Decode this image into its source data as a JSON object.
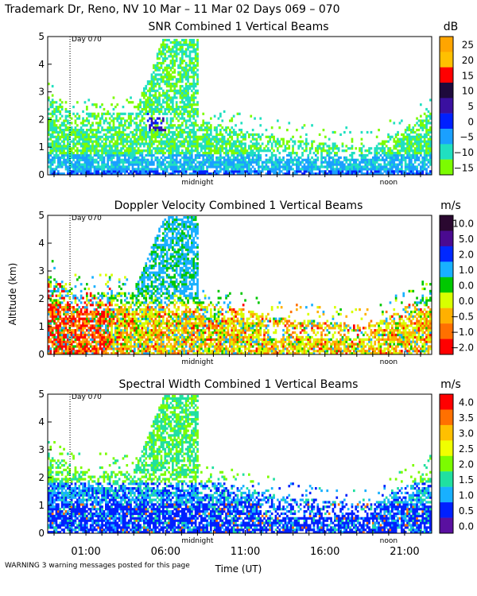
{
  "header": "Trademark Dr, Reno, NV  10 Mar – 11 Mar 02 Days 069 – 070",
  "warning": "WARNING  3 warning messages posted for this page",
  "time_axis": {
    "label": "Time (UT)",
    "hour_labels": [
      "01:00",
      "06:00",
      "11:00",
      "16:00",
      "21:00"
    ],
    "hour_values": [
      1,
      6,
      11,
      16,
      21
    ],
    "markers": [
      {
        "label": "midnight",
        "value": 8
      },
      {
        "label": "noon",
        "value": 20
      }
    ],
    "day_marker": {
      "label": "Day 070",
      "value": 0
    },
    "xlim": [
      -1.4,
      22.7
    ]
  },
  "shared_ylabel": "Altitude (km)",
  "chart_data": [
    {
      "type": "heatmap",
      "title": "SNR Combined 1 Vertical Beams",
      "units": "dB",
      "xlabel": "Time (UT)",
      "ylabel": "Altitude (km)",
      "ylim": [
        0,
        5
      ],
      "yticks": [
        0,
        1,
        2,
        3,
        4,
        5
      ],
      "colorbar": {
        "labels": [
          "25",
          "20",
          "15",
          "10",
          "5",
          "0",
          "−5",
          "−10",
          "−15"
        ],
        "colors": [
          "#ffa500",
          "#ffc000",
          "#ff0000",
          "#1e0a3c",
          "#3a10a0",
          "#0020ff",
          "#1aa0ff",
          "#20e0c0",
          "#7cfc00"
        ]
      },
      "features": [
        {
          "name": "boundary layer band",
          "time_range": [
            -1.4,
            22.7
          ],
          "altitude_range": [
            0,
            2.3
          ]
        },
        {
          "name": "tall plume",
          "time_range": [
            3.5,
            8.0
          ],
          "altitude_range": [
            1.5,
            5.0
          ]
        }
      ]
    },
    {
      "type": "heatmap",
      "title": "Doppler Velocity Combined 1 Vertical Beams",
      "units": "m/s",
      "xlabel": "Time (UT)",
      "ylabel": "Altitude (km)",
      "ylim": [
        0,
        5
      ],
      "yticks": [
        0,
        1,
        2,
        3,
        4,
        5
      ],
      "colorbar": {
        "labels": [
          "10.0",
          "5.0",
          "2.0",
          "1.0",
          "0.0",
          "0.0",
          "−0.5",
          "−1.0",
          "−2.0"
        ],
        "colors": [
          "#2a0830",
          "#4a0a90",
          "#0028ff",
          "#18b0ff",
          "#00c800",
          "#d8ff00",
          "#ffb000",
          "#ff7000",
          "#ff0000"
        ]
      },
      "features": [
        {
          "name": "mixed layer",
          "time_range": [
            -1.4,
            22.7
          ],
          "altitude_range": [
            0,
            2.4
          ]
        },
        {
          "name": "tall plume",
          "time_range": [
            3.5,
            8.0
          ],
          "altitude_range": [
            1.8,
            5.0
          ]
        }
      ]
    },
    {
      "type": "heatmap",
      "title": "Spectral Width Combined 1 Vertical Beams",
      "units": "m/s",
      "xlabel": "Time (UT)",
      "ylabel": "Altitude (km)",
      "ylim": [
        0,
        5
      ],
      "yticks": [
        0,
        1,
        2,
        3,
        4,
        5
      ],
      "colorbar": {
        "labels": [
          "4.0",
          "3.5",
          "3.0",
          "2.5",
          "2.0",
          "1.5",
          "1.0",
          "0.5",
          "0.0"
        ],
        "colors": [
          "#ff0000",
          "#ff7000",
          "#ffc000",
          "#f0ff00",
          "#7cfc00",
          "#20e0a0",
          "#18b0ff",
          "#0020ff",
          "#5a10a0"
        ]
      },
      "features": [
        {
          "name": "low width layer",
          "time_range": [
            -1.4,
            22.7
          ],
          "altitude_range": [
            0,
            2.3
          ]
        },
        {
          "name": "tall plume",
          "time_range": [
            3.5,
            8.0
          ],
          "altitude_range": [
            1.8,
            5.0
          ]
        }
      ]
    }
  ]
}
